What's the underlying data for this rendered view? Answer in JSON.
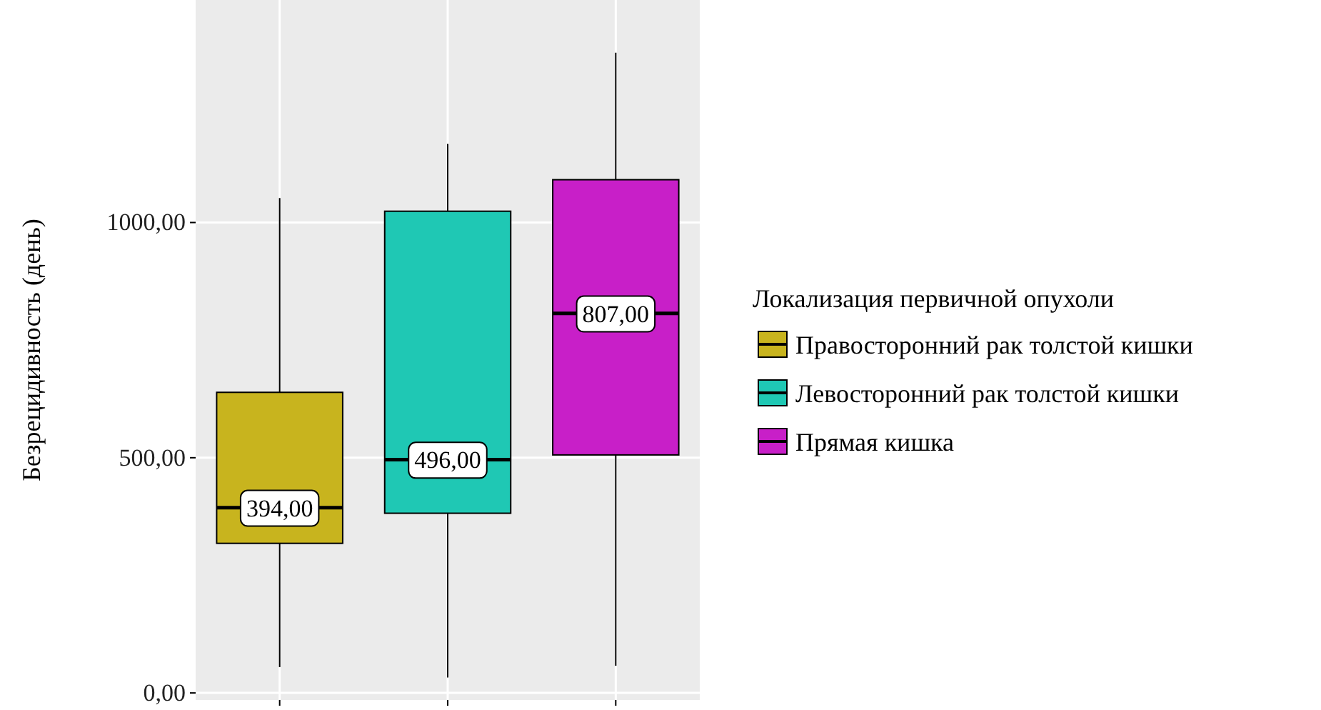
{
  "chart_data": {
    "type": "box",
    "ylabel": "Безрецидивность (день)",
    "legend_title": "Локализация первичной опухоли",
    "categories": [
      null,
      null,
      null
    ],
    "series": [
      {
        "name": "Правосторонний рак толстой кишки",
        "color": "#c8b41e",
        "boxes": [
          {
            "low": 55,
            "q1": 318,
            "median": 394,
            "q3": 639,
            "high": 1052
          },
          null,
          null
        ]
      },
      {
        "name": "Левосторонний рак толстой кишки",
        "color": "#1fc8b4",
        "boxes": [
          null,
          {
            "low": 33,
            "q1": 382,
            "median": 496,
            "q3": 1024,
            "high": 1167
          },
          null
        ]
      },
      {
        "name": "Прямая кишка",
        "color": "#c81fc8",
        "boxes": [
          null,
          null,
          {
            "low": 58,
            "q1": 506,
            "median": 807,
            "q3": 1091,
            "high": 1361
          }
        ]
      }
    ],
    "value_labels": [
      "394,00",
      "496,00",
      "807,00"
    ],
    "ylim": [
      -15,
      1473
    ],
    "yticks": [
      {
        "value": 0,
        "label": "0,00"
      },
      {
        "value": 500,
        "label": "500,00"
      },
      {
        "value": 1000,
        "label": "1000,00"
      }
    ],
    "grid": true,
    "legend": "right"
  }
}
